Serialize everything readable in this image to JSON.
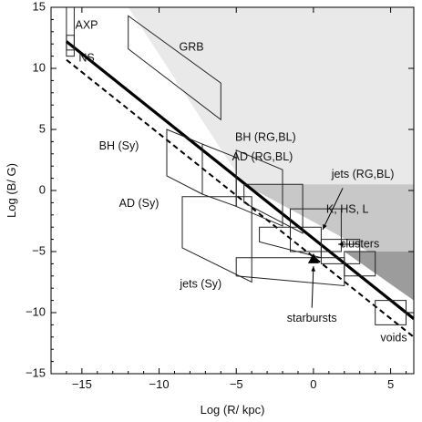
{
  "chart_data": {
    "type": "line",
    "xlabel": "Log (R/ kpc)",
    "ylabel": "Log (B/ G)",
    "xlim": [
      -17,
      6.5
    ],
    "ylim": [
      -15,
      15
    ],
    "xticks": [
      -15,
      -10,
      -5,
      0,
      5
    ],
    "yticks": [
      -15,
      -10,
      -5,
      0,
      5,
      10,
      15
    ],
    "xticklabels": [
      "−15",
      "−10",
      "−5",
      "0",
      "5"
    ],
    "yticklabels": [
      "−15",
      "−10",
      "−5",
      "0",
      "5",
      "10",
      "15"
    ],
    "colors": {
      "region_light": "#e9e9e9",
      "region_mid": "#c8c8c8",
      "region_dark": "#9c9c9c",
      "box_stroke": "#222222",
      "line": "#000000"
    },
    "shaded_regions": [
      {
        "tone": "light",
        "polygon": [
          [
            -12,
            15
          ],
          [
            6.5,
            15
          ],
          [
            6.5,
            0.5
          ],
          [
            -4.5,
            0.5
          ]
        ]
      },
      {
        "tone": "mid",
        "polygon": [
          [
            -4.5,
            0.5
          ],
          [
            6.5,
            0.5
          ],
          [
            6.5,
            -7.0
          ],
          [
            -4.5,
            0.5
          ]
        ]
      },
      {
        "tone": "dark",
        "polygon": [
          [
            2.0,
            -5.0
          ],
          [
            6.5,
            -5.0
          ],
          [
            6.5,
            -9.0
          ],
          [
            2.0,
            -5.0
          ]
        ]
      }
    ],
    "lines": [
      {
        "style": "solid-thick",
        "x": [
          -16.0,
          6.5
        ],
        "y": [
          12.2,
          -10.5
        ]
      },
      {
        "style": "dashed",
        "x": [
          -16.0,
          6.5
        ],
        "y": [
          10.7,
          -12.0
        ]
      }
    ],
    "regions": [
      {
        "name": "AXP",
        "polygon": [
          [
            -16,
            15
          ],
          [
            -15.5,
            15
          ],
          [
            -15.5,
            11.5
          ],
          [
            -16,
            11.5
          ]
        ],
        "label_at": [
          -14.7,
          13.5
        ]
      },
      {
        "name": "NS",
        "polygon": [
          [
            -16,
            12.7
          ],
          [
            -15.5,
            12.7
          ],
          [
            -15.5,
            11.0
          ],
          [
            -16,
            11.0
          ]
        ],
        "label_at": [
          -14.7,
          10.8
        ]
      },
      {
        "name": "GRB",
        "polygon": [
          [
            -12,
            14.3
          ],
          [
            -6,
            8.8
          ],
          [
            -6,
            5.8
          ],
          [
            -12,
            11.6
          ]
        ],
        "label_at": [
          -7.9,
          11.7
        ]
      },
      {
        "name": "BH (Sy)",
        "polygon": [
          [
            -9.5,
            5.0
          ],
          [
            -7.2,
            3.8
          ],
          [
            -7.2,
            -0.3
          ],
          [
            -9.5,
            1.2
          ]
        ],
        "label_at": [
          -12.6,
          3.6
        ]
      },
      {
        "name": "BH (RG,BL)",
        "polygon": [
          [
            -7.2,
            3.8
          ],
          [
            -5.0,
            2.7
          ],
          [
            -5.0,
            -1.3
          ],
          [
            -7.2,
            -0.3
          ]
        ],
        "label_at": [
          -3.1,
          4.3
        ]
      },
      {
        "name": "AD (RG,BL)",
        "polygon": [
          [
            -5.0,
            3.3
          ],
          [
            -2.0,
            1.7
          ],
          [
            -2.0,
            -2.9
          ],
          [
            -5.0,
            -1.3
          ]
        ],
        "label_at": [
          -3.3,
          2.7
        ]
      },
      {
        "name": "AD (Sy)",
        "polygon": [
          [
            -8.5,
            -0.5
          ],
          [
            -4.0,
            -0.5
          ],
          [
            -4.0,
            -7.5
          ],
          [
            -8.5,
            -4.7
          ]
        ],
        "label_at": [
          -11.3,
          -1.1
        ]
      },
      {
        "name": "jets (RG,BL)",
        "polygon": [
          [
            -4.5,
            0.5
          ],
          [
            -0.7,
            0.5
          ],
          [
            -0.7,
            -3.5
          ],
          [
            -4.5,
            -1.0
          ]
        ],
        "label_at": [
          3.2,
          1.3
        ]
      },
      {
        "name": "K, HS, L",
        "polygon": [
          [
            -1.5,
            -1.5
          ],
          [
            1.8,
            -1.5
          ],
          [
            1.8,
            -5.0
          ],
          [
            -1.5,
            -5.0
          ]
        ],
        "label_at": [
          2.2,
          -1.6
        ]
      },
      {
        "name": "clusters",
        "polygon": [
          [
            -3.5,
            -3.0
          ],
          [
            0.5,
            -3.0
          ],
          [
            0.5,
            -5.5
          ],
          [
            -3.5,
            -4.2
          ]
        ],
        "label_at": [
          3.0,
          -4.4
        ]
      },
      {
        "name": "jets (Sy)",
        "polygon": [
          [
            -5.0,
            -5.5
          ],
          [
            2.0,
            -5.5
          ],
          [
            2.0,
            -7.8
          ],
          [
            -5.0,
            -7.0
          ]
        ],
        "label_at": [
          -7.3,
          -7.7
        ]
      },
      {
        "name": "",
        "polygon": [
          [
            0.5,
            -4.0
          ],
          [
            3.0,
            -4.0
          ],
          [
            3.0,
            -6.0
          ],
          [
            0.5,
            -6.0
          ]
        ],
        "label_at": null
      },
      {
        "name": "",
        "polygon": [
          [
            2.0,
            -5.0
          ],
          [
            4.0,
            -5.0
          ],
          [
            4.0,
            -7.0
          ],
          [
            2.0,
            -7.0
          ]
        ],
        "label_at": null
      },
      {
        "name": "voids",
        "polygon": [
          [
            4.0,
            -9.0
          ],
          [
            6.0,
            -9.0
          ],
          [
            6.0,
            -11.0
          ],
          [
            4.0,
            -11.0
          ]
        ],
        "label_at": [
          5.2,
          -12.1
        ]
      }
    ],
    "points": [
      {
        "name": "starbursts",
        "x": 0.0,
        "y": -5.6,
        "marker": "triangle",
        "label_at": [
          -0.1,
          -10.5
        ]
      }
    ],
    "arrows": [
      {
        "from": [
          1.9,
          0.2
        ],
        "to": [
          0.6,
          -3.2
        ]
      },
      {
        "from": [
          3.0,
          -4.4
        ],
        "to": [
          1.6,
          -4.4
        ]
      },
      {
        "from": [
          -0.1,
          -9.6
        ],
        "to": [
          0.0,
          -6.2
        ]
      }
    ]
  }
}
